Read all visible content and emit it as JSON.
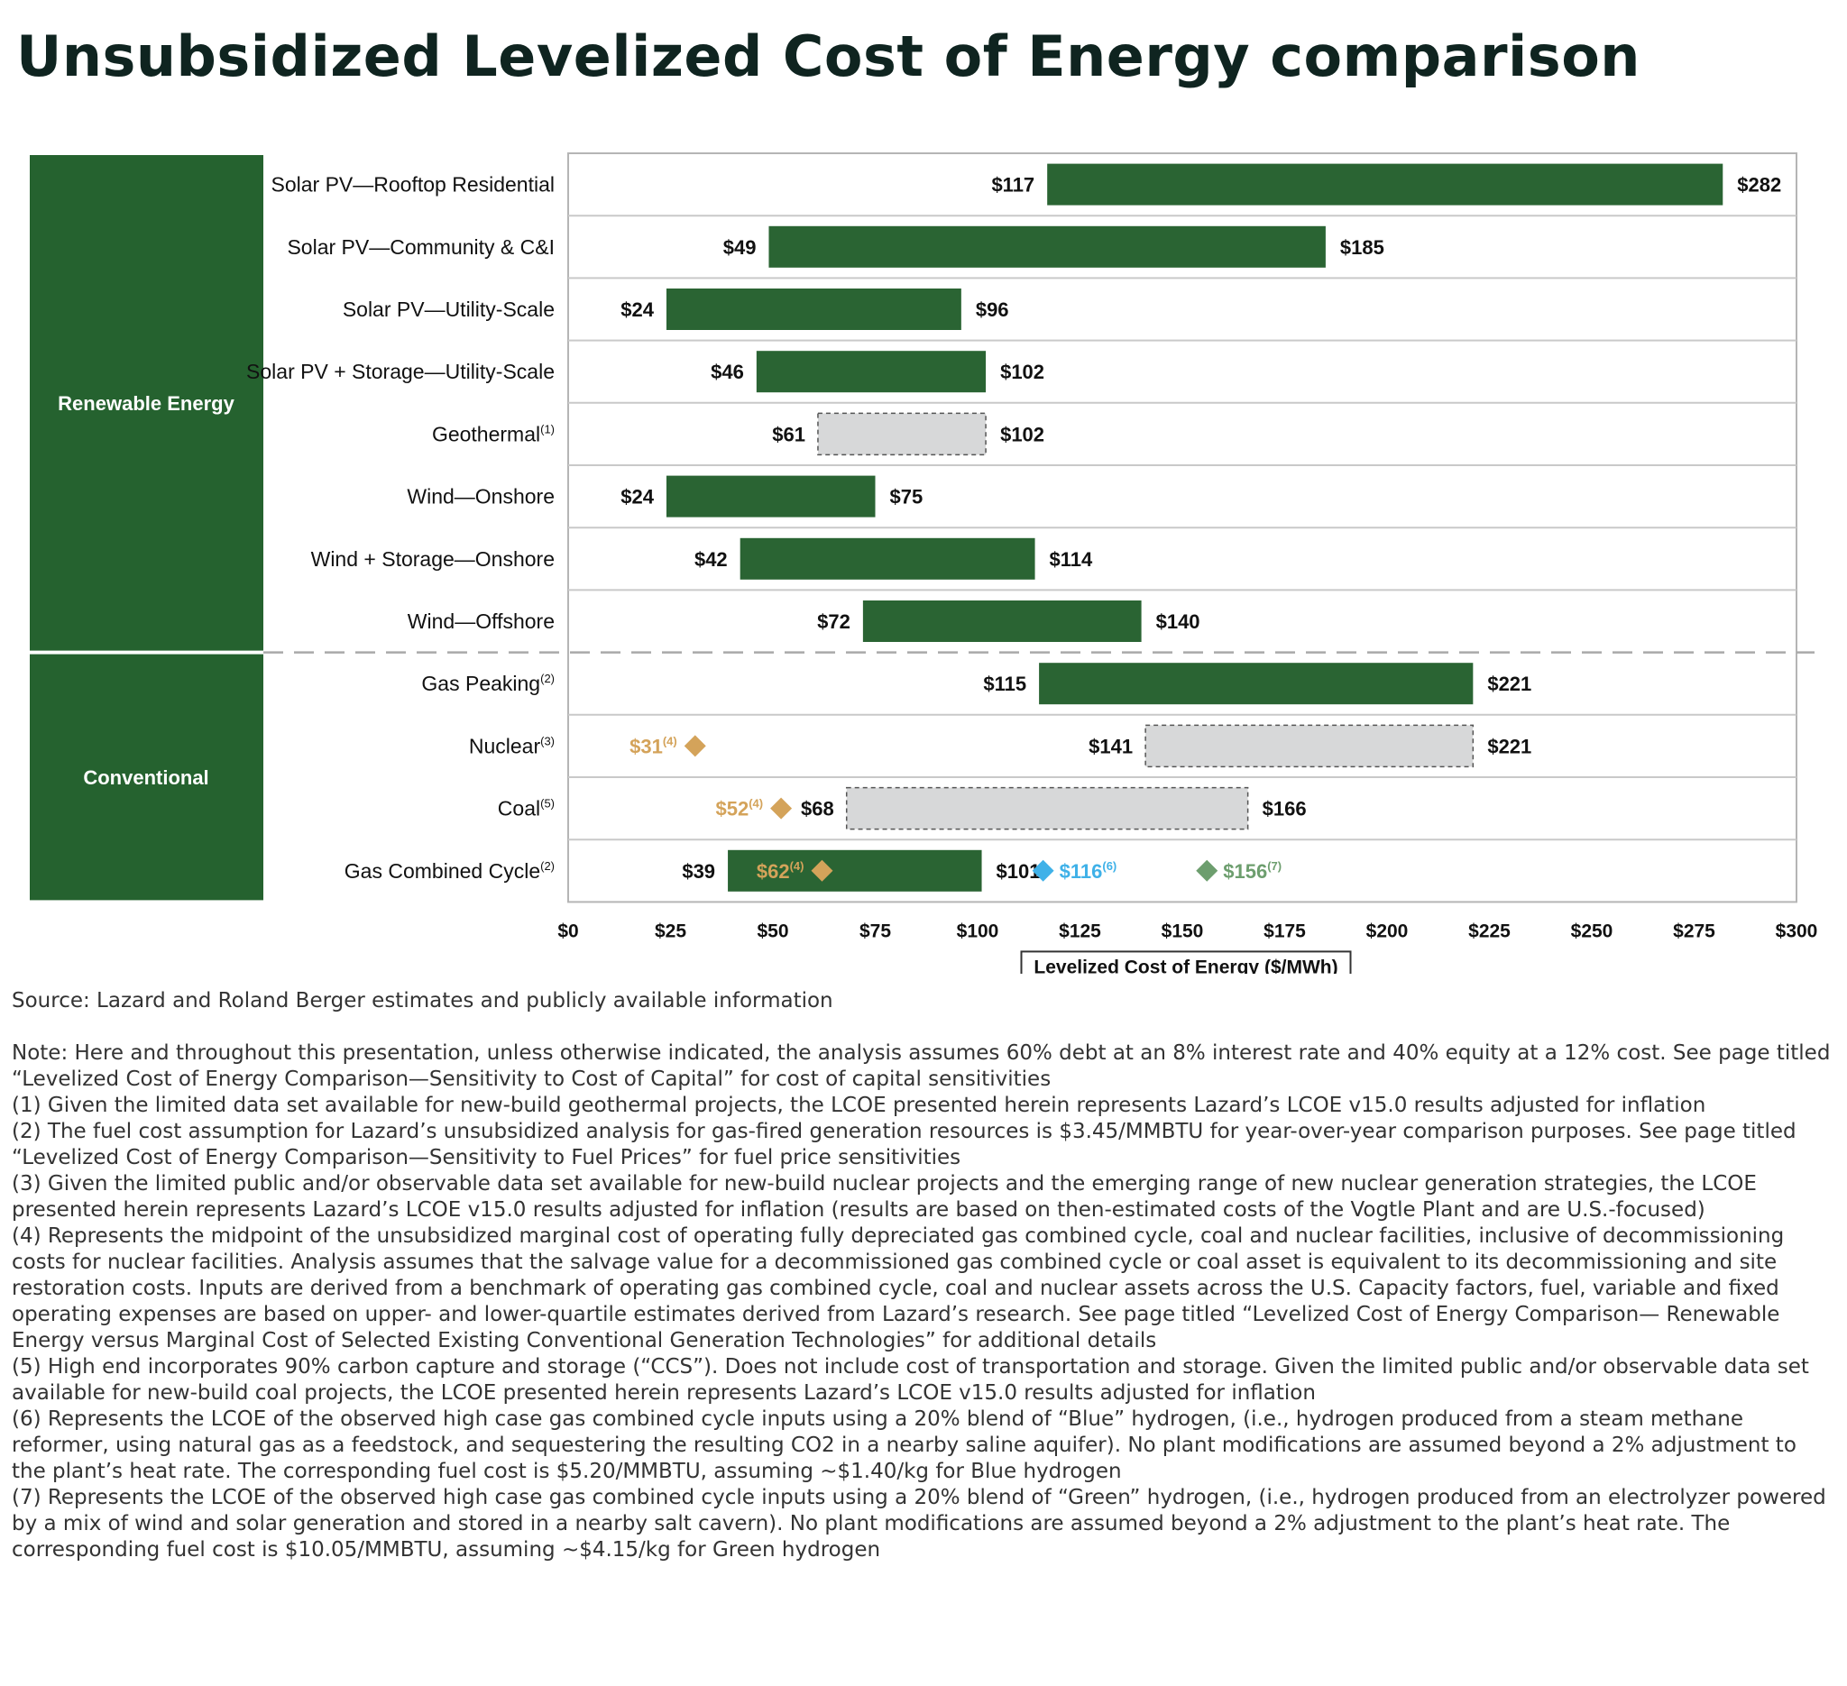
{
  "title": "Unsubsidized Levelized Cost of Energy comparison",
  "colors": {
    "bar": "#2a6433",
    "panel": "#25622f",
    "hatched": "#d7d8d9",
    "grid": "#c9c9c9",
    "marker_orange": "#d4a35a",
    "marker_blue": "#3fb1e8",
    "marker_green": "#6d9e6e"
  },
  "chart_data": {
    "type": "bar",
    "orientation": "horizontal-range",
    "xlabel": "Levelized Cost of Energy ($/MWh)",
    "xlim": [
      0,
      300
    ],
    "xticks": [
      0,
      25,
      50,
      75,
      100,
      125,
      150,
      175,
      200,
      225,
      250,
      275,
      300
    ],
    "xtick_labels": [
      "$0",
      "$25",
      "$50",
      "$75",
      "$100",
      "$125",
      "$150",
      "$175",
      "$200",
      "$225",
      "$250",
      "$275",
      "$300"
    ],
    "groups": [
      {
        "name": "Renewable Energy",
        "rows": [
          0,
          7
        ]
      },
      {
        "name": "Conventional",
        "rows": [
          8,
          11
        ]
      }
    ],
    "rows": [
      {
        "label": "Solar PV—Rooftop Residential",
        "sup": "",
        "low": 117,
        "high": 282,
        "low_label": "$117",
        "high_label": "$282",
        "style": "solid",
        "markers": []
      },
      {
        "label": "Solar PV—Community & C&I",
        "sup": "",
        "low": 49,
        "high": 185,
        "low_label": "$49",
        "high_label": "$185",
        "style": "solid",
        "markers": []
      },
      {
        "label": "Solar PV—Utility-Scale",
        "sup": "",
        "low": 24,
        "high": 96,
        "low_label": "$24",
        "high_label": "$96",
        "style": "solid",
        "markers": []
      },
      {
        "label": "Solar PV + Storage—Utility-Scale",
        "sup": "",
        "low": 46,
        "high": 102,
        "low_label": "$46",
        "high_label": "$102",
        "style": "solid",
        "markers": []
      },
      {
        "label": "Geothermal",
        "sup": "(1)",
        "low": 61,
        "high": 102,
        "low_label": "$61",
        "high_label": "$102",
        "style": "dashed",
        "markers": []
      },
      {
        "label": "Wind—Onshore",
        "sup": "",
        "low": 24,
        "high": 75,
        "low_label": "$24",
        "high_label": "$75",
        "style": "solid",
        "markers": []
      },
      {
        "label": "Wind + Storage—Onshore",
        "sup": "",
        "low": 42,
        "high": 114,
        "low_label": "$42",
        "high_label": "$114",
        "style": "solid",
        "markers": []
      },
      {
        "label": "Wind—Offshore",
        "sup": "",
        "low": 72,
        "high": 140,
        "low_label": "$72",
        "high_label": "$140",
        "style": "solid",
        "markers": []
      },
      {
        "label": "Gas Peaking",
        "sup": "(2)",
        "low": 115,
        "high": 221,
        "low_label": "$115",
        "high_label": "$221",
        "style": "solid",
        "markers": []
      },
      {
        "label": "Nuclear",
        "sup": "(3)",
        "low": 141,
        "high": 221,
        "low_label": "$141",
        "high_label": "$221",
        "style": "dashed",
        "markers": [
          {
            "value": 31,
            "label": "$31",
            "sup": "(4)",
            "color": "orange",
            "label_side": "left"
          }
        ]
      },
      {
        "label": "Coal",
        "sup": "(5)",
        "low": 68,
        "high": 166,
        "low_label": "$68",
        "high_label": "$166",
        "style": "dashed",
        "markers": [
          {
            "value": 52,
            "label": "$52",
            "sup": "(4)",
            "color": "orange",
            "label_side": "left"
          }
        ]
      },
      {
        "label": "Gas Combined Cycle",
        "sup": "(2)",
        "low": 39,
        "high": 101,
        "low_label": "$39",
        "high_label": "$101",
        "style": "solid",
        "markers": [
          {
            "value": 62,
            "label": "$62",
            "sup": "(4)",
            "color": "orange",
            "label_side": "left"
          },
          {
            "value": 116,
            "label": "$116",
            "sup": "(6)",
            "color": "blue",
            "label_side": "right"
          },
          {
            "value": 156,
            "label": "$156",
            "sup": "(7)",
            "color": "green",
            "label_side": "right"
          }
        ]
      }
    ]
  },
  "source": "Source: Lazard and Roland Berger estimates and publicly available information",
  "notes": [
    "Note: Here and throughout this presentation, unless otherwise indicated, the analysis assumes 60% debt at an 8% interest rate and 40% equity at a 12% cost. See page titled “Levelized Cost of Energy Comparison—Sensitivity to Cost of Capital” for cost of capital sensitivities",
    "(1) Given the limited data set available for new-build geothermal projects, the LCOE presented herein represents Lazard’s LCOE v15.0 results adjusted for inflation",
    "(2) The fuel cost assumption for Lazard’s unsubsidized analysis for gas-fired generation resources is $3.45/MMBTU for year-over-year comparison purposes. See page titled “Levelized Cost of Energy Comparison—Sensitivity to Fuel Prices” for fuel price sensitivities",
    "(3) Given the limited public and/or observable data set available for new-build nuclear projects and the emerging range of new nuclear generation strategies, the LCOE presented herein represents Lazard’s LCOE v15.0 results adjusted for inflation (results are based on then-estimated costs of the Vogtle Plant and are U.S.-focused)",
    "(4) Represents the midpoint of the unsubsidized marginal cost of operating fully depreciated gas combined cycle, coal and nuclear facilities, inclusive of decommissioning costs for nuclear facilities. Analysis assumes that the salvage value for a decommissioned gas combined cycle or coal asset is equivalent to its decommissioning and site restoration costs. Inputs are derived from a benchmark of operating gas combined cycle, coal and nuclear assets across the U.S. Capacity factors, fuel, variable and fixed operating expenses are based on upper- and lower-quartile estimates derived from Lazard’s research. See page titled “Levelized Cost of Energy Comparison— Renewable Energy versus Marginal Cost of Selected Existing Conventional Generation Technologies” for additional details",
    "(5) High end incorporates 90% carbon capture and storage (“CCS”). Does not include cost of transportation and storage. Given the limited public and/or observable data set available for new-build coal projects, the LCOE presented herein represents Lazard’s LCOE v15.0 results adjusted for inflation",
    "(6) Represents the LCOE of the observed high case gas combined cycle inputs using a 20% blend of “Blue” hydrogen, (i.e., hydrogen produced from a steam methane reformer, using natural gas as a feedstock, and sequestering the resulting CO2 in a nearby saline aquifer). No plant modifications are assumed beyond a 2% adjustment to the plant’s heat rate. The corresponding fuel cost is $5.20/MMBTU, assuming ~$1.40/kg for Blue hydrogen",
    "(7) Represents the LCOE of the observed high case gas combined cycle inputs using a 20% blend of “Green” hydrogen, (i.e., hydrogen produced from an electrolyzer powered by a mix of wind and solar generation and stored in a nearby salt cavern). No plant modifications are assumed beyond a 2% adjustment to the plant’s heat rate. The corresponding fuel cost is $10.05/MMBTU, assuming ~$4.15/kg for Green hydrogen"
  ]
}
